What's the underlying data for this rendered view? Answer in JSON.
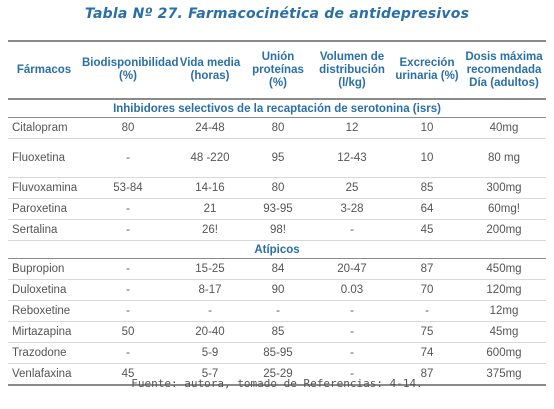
{
  "title": "Tabla Nº 27. Farmacocinética de antidepresivos",
  "columns": [
    "Fármacos",
    "Biodisponibilidad (%)",
    "Vida media (horas)",
    "Unión proteínas (%)",
    "Volumen de distribución (l/kg)",
    "Excreción urinaria (%)",
    "Dosis máxima recomendada Día (adultos)"
  ],
  "sections": [
    {
      "label": "Inhibidores selectivos de la recaptación de serotonina (isrs)",
      "rows": [
        {
          "drug": "Citalopram",
          "bio": "80",
          "half": "24-48",
          "prot": "80",
          "vol": "12",
          "exc": "10",
          "dose": "40mg"
        },
        {
          "drug": "Fluoxetina",
          "bio": "-",
          "half": "48 -220",
          "prot": "95",
          "vol": "12-43",
          "exc": "10",
          "dose": "80 mg"
        },
        {
          "drug": "Fluvoxamina",
          "bio": "53-84",
          "half": "14-16",
          "prot": "80",
          "vol": "25",
          "exc": "85",
          "dose": "300mg"
        },
        {
          "drug": "Paroxetina",
          "bio": "-",
          "half": "21",
          "prot": "93-95",
          "vol": "3-28",
          "exc": "64",
          "dose": "60mg!"
        },
        {
          "drug": "Sertalina",
          "bio": "-",
          "half": "26!",
          "prot": "98!",
          "vol": "-",
          "exc": "45",
          "dose": "200mg"
        }
      ]
    },
    {
      "label": "Atípicos",
      "rows": [
        {
          "drug": "Bupropion",
          "bio": "-",
          "half": "15-25",
          "prot": "84",
          "vol": "20-47",
          "exc": "87",
          "dose": "450mg"
        },
        {
          "drug": "Duloxetina",
          "bio": "-",
          "half": "8-17",
          "prot": "90",
          "vol": "0.03",
          "exc": "70",
          "dose": "120mg"
        },
        {
          "drug": "Reboxetine",
          "bio": "-",
          "half": "-",
          "prot": "-",
          "vol": "-",
          "exc": "-",
          "dose": "12mg"
        },
        {
          "drug": "Mirtazapina",
          "bio": "50",
          "half": "20-40",
          "prot": "85",
          "vol": "-",
          "exc": "75",
          "dose": "45mg"
        },
        {
          "drug": "Trazodone",
          "bio": "-",
          "half": "5-9",
          "prot": "85-95",
          "vol": "-",
          "exc": "74",
          "dose": "600mg"
        },
        {
          "drug": "Venlafaxina",
          "bio": "45",
          "half": "5-7",
          "prot": "25-29",
          "vol": "-",
          "exc": "87",
          "dose": "375mg"
        }
      ]
    }
  ],
  "source": "Fuente: autora, tomado de Referencias: 4-14."
}
